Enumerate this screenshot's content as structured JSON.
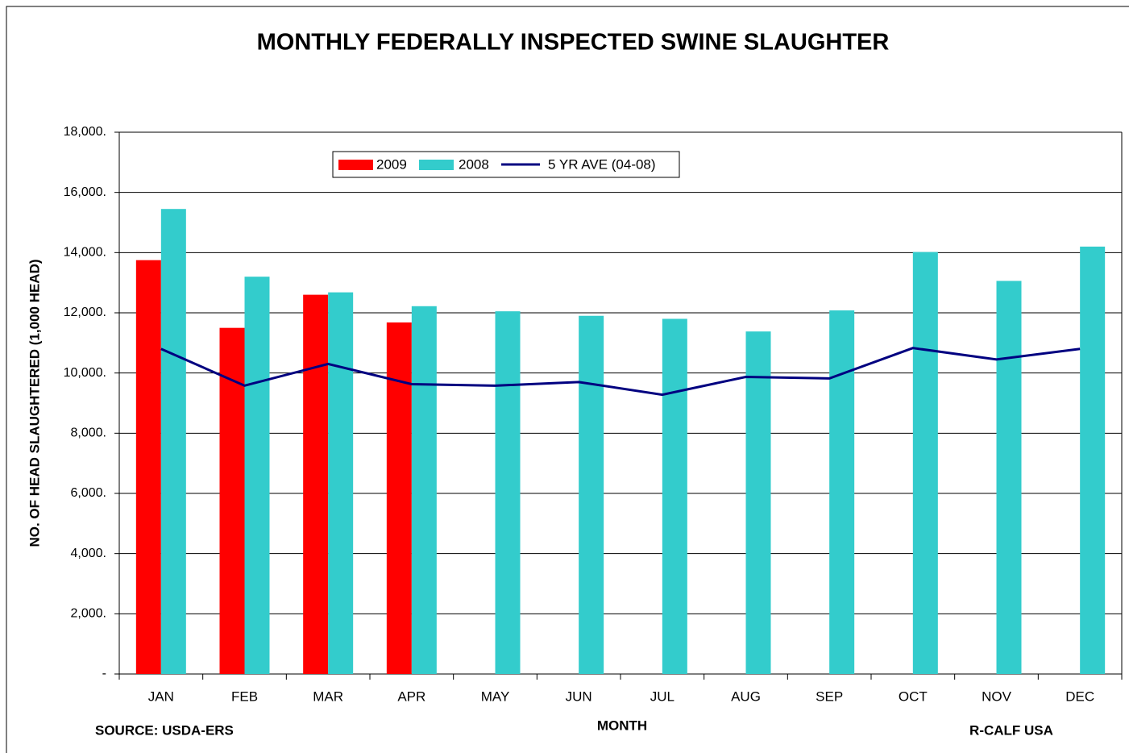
{
  "chart_data": {
    "type": "bar",
    "title": "MONTHLY FEDERALLY INSPECTED SWINE SLAUGHTER",
    "y_label": "NO. OF HEAD SLAUGHTERED (1,000 HEAD)",
    "x_label": "MONTH",
    "source": "SOURCE:  USDA-ERS",
    "credit": "R-CALF USA",
    "categories": [
      "JAN",
      "FEB",
      "MAR",
      "APR",
      "MAY",
      "JUN",
      "JUL",
      "AUG",
      "SEP",
      "OCT",
      "NOV",
      "DEC"
    ],
    "series": [
      {
        "name": "2009",
        "color": "#ff0000",
        "type": "bar",
        "values": [
          13750,
          11500,
          12600,
          11680,
          null,
          null,
          null,
          null,
          null,
          null,
          null,
          null
        ]
      },
      {
        "name": "2008",
        "color": "#33cccc",
        "type": "bar",
        "values": [
          15450,
          13200,
          12680,
          12220,
          12050,
          11900,
          11800,
          11380,
          12080,
          14020,
          13060,
          14200
        ]
      },
      {
        "name": "5 YR AVE (04-08)",
        "color": "#000080",
        "type": "line",
        "values": [
          10800,
          9580,
          10300,
          9630,
          9580,
          9700,
          9280,
          9870,
          9820,
          10830,
          10450,
          10800
        ]
      }
    ],
    "ylim": [
      0,
      18000
    ],
    "yticks": [
      {
        "value": 0,
        "label": "-"
      },
      {
        "value": 2000,
        "label": "2,000."
      },
      {
        "value": 4000,
        "label": "4,000."
      },
      {
        "value": 6000,
        "label": "6,000."
      },
      {
        "value": 8000,
        "label": "8,000."
      },
      {
        "value": 10000,
        "label": "10,000."
      },
      {
        "value": 12000,
        "label": "12,000."
      },
      {
        "value": 14000,
        "label": "14,000."
      },
      {
        "value": 16000,
        "label": "16,000."
      },
      {
        "value": 18000,
        "label": "18,000."
      }
    ],
    "grid": true
  }
}
